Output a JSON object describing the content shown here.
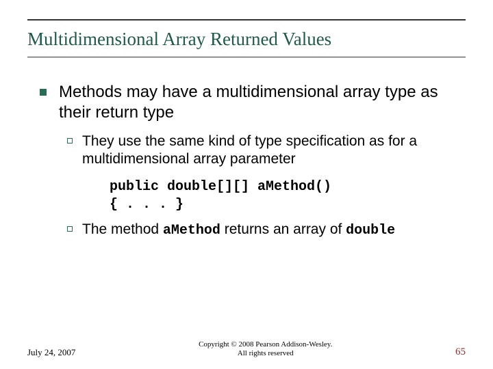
{
  "colors": {
    "title_text": "#1f5a4a",
    "title_line": "#333333",
    "body_text": "#000000",
    "bullet_l1": "#2a6b56",
    "bullet_l2_border": "#2a6b56",
    "footer_text": "#000000",
    "page_number": "#8a2f2f"
  },
  "typography": {
    "title_fontsize": 27,
    "l1_fontsize": 24,
    "l2_fontsize": 21,
    "code_fontsize": 20,
    "footer_date_fontsize": 13,
    "footer_center_fontsize": 11,
    "page_number_fontsize": 15
  },
  "title": "Multidimensional Array Returned Values",
  "bullets": {
    "l1": "Methods may have a multidimensional array type as their return type",
    "l2a": "They use the same kind of type specification as for a multidimensional array parameter",
    "code_line1": "public double[][] aMethod()",
    "code_line2": "{ . . . }",
    "l2b_pre": "The method ",
    "l2b_code1": "aMethod",
    "l2b_mid": " returns an array of ",
    "l2b_code2": "double"
  },
  "footer": {
    "date": "July 24, 2007",
    "copyright_l1": "Copyright © 2008 Pearson Addison-Wesley.",
    "copyright_l2": "All rights reserved",
    "page": "65"
  }
}
